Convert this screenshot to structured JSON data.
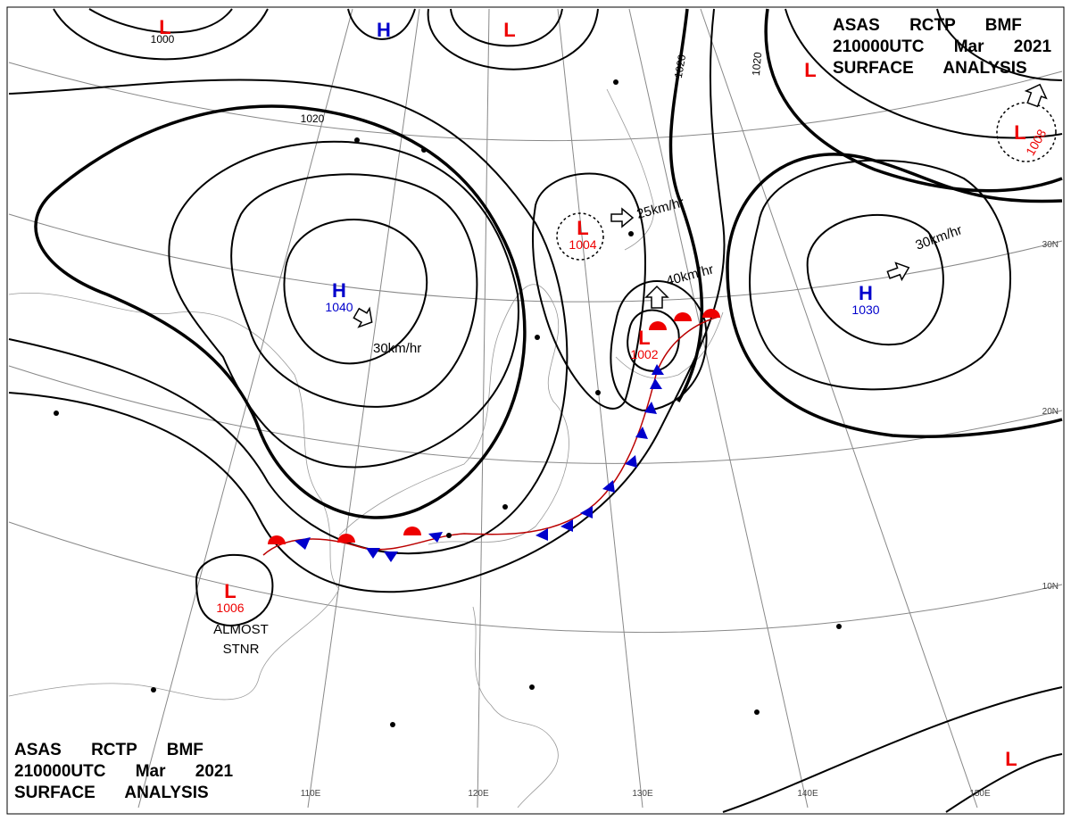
{
  "header_top": [
    "ASAS RCTP BMF",
    "210000UTC Mar 2021",
    "SURFACE ANALYSIS"
  ],
  "header_bottom": [
    "ASAS RCTP BMF",
    "210000UTC Mar 2021",
    "SURFACE ANALYSIS"
  ],
  "pressure_centers": [
    {
      "symbol": "L"
    },
    {
      "symbol": "H"
    },
    {
      "symbol": "L"
    },
    {
      "symbol": "L"
    },
    {
      "symbol": "L",
      "pressure": 1004
    },
    {
      "symbol": "L",
      "pressure": 1008
    },
    {
      "symbol": "H",
      "pressure": 1040
    },
    {
      "symbol": "H",
      "pressure": 1030
    },
    {
      "symbol": "L",
      "pressure": 1002
    },
    {
      "symbol": "L",
      "pressure": 1006
    },
    {
      "symbol": "L"
    }
  ],
  "isobar_labels": [
    1000,
    1020,
    1020,
    1020
  ],
  "motion_labels": [
    "30km/hr",
    "25km/hr",
    "40km/hr",
    "30km/hr"
  ],
  "annotations": [
    "ALMOST",
    "STNR"
  ],
  "lat_labels": [
    "30N",
    "20N",
    "10N"
  ],
  "lon_labels": [
    "110E",
    "120E",
    "130E",
    "140E",
    "150E"
  ]
}
